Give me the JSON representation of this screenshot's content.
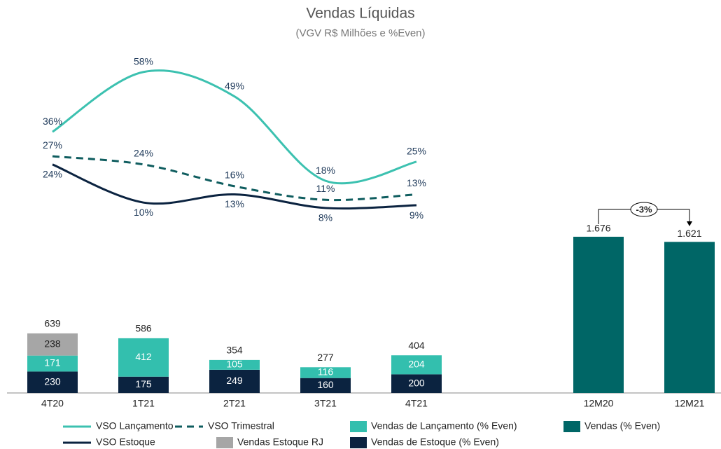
{
  "chart_data": {
    "type": "bar",
    "title": "Vendas Líquidas",
    "subtitle": "(VGV R$ Milhões e %Even)",
    "categories": [
      "4T20",
      "1T21",
      "2T21",
      "3T21",
      "4T21",
      null,
      "12M20",
      "12M21"
    ],
    "ylim": [
      0,
      3750
    ],
    "y2lim": [
      -60,
      68.5
    ],
    "totals": [
      639,
      586,
      354,
      277,
      404,
      null,
      null,
      null
    ],
    "annotation": "-3%",
    "series": [
      {
        "name": "VSO Lançamento",
        "type": "line",
        "axis": "y2",
        "color": "#3cc1b0",
        "line_style": "solid",
        "values": [
          36,
          58,
          49,
          18,
          25,
          null,
          null,
          null
        ],
        "value_labels": [
          "36%",
          "58%",
          "49%",
          "18%",
          "25%",
          null,
          null,
          null
        ]
      },
      {
        "name": "VSO Trimestral",
        "type": "line",
        "axis": "y2",
        "color": "#0f5d5f",
        "line_style": "dashed",
        "values": [
          27,
          24,
          16,
          11,
          13,
          null,
          null,
          null
        ],
        "value_labels": [
          "27%",
          "24%",
          "16%",
          "11%",
          "13%",
          null,
          null,
          null
        ]
      },
      {
        "name": "Vendas de Lançamento (% Even)",
        "type": "bar",
        "color": "#33bfae",
        "values": [
          171,
          412,
          105,
          116,
          204,
          null,
          null,
          null
        ]
      },
      {
        "name": "Vendas (% Even)",
        "type": "bar",
        "color": "#006666",
        "values": [
          null,
          null,
          null,
          null,
          null,
          null,
          1676,
          1621
        ],
        "value_labels": [
          null,
          null,
          null,
          null,
          null,
          null,
          "1.676",
          "1.621"
        ]
      },
      {
        "name": "VSO Estoque",
        "type": "line",
        "axis": "y2",
        "color": "#0b2340",
        "line_style": "solid",
        "values": [
          24,
          10,
          13,
          8,
          9,
          null,
          null,
          null
        ],
        "value_labels": [
          "24%",
          "10%",
          "13%",
          "8%",
          "9%",
          null,
          null,
          null
        ]
      },
      {
        "name": "Vendas Estoque RJ",
        "type": "bar",
        "color": "#a6a6a6",
        "values": [
          238,
          null,
          null,
          null,
          null,
          null,
          null,
          null
        ]
      },
      {
        "name": "Vendas de Estoque (% Even)",
        "type": "bar",
        "color": "#0b2340",
        "values": [
          230,
          175,
          249,
          160,
          200,
          null,
          null,
          null
        ]
      }
    ]
  }
}
